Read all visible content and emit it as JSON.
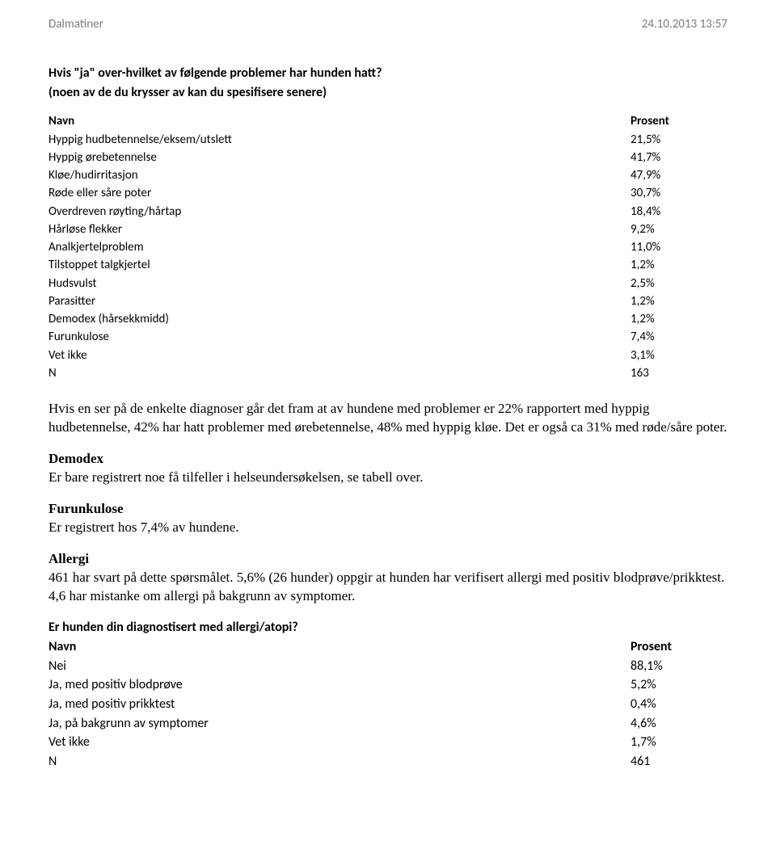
{
  "header": {
    "left": "Dalmatiner",
    "right": "24.10.2013 13:57"
  },
  "section1": {
    "title": "Hvis \"ja\" over-hvilket av følgende problemer har hunden hatt?",
    "sub": "(noen av de du krysser av kan du spesifisere senere)",
    "name_header": "Navn",
    "value_header": "Prosent",
    "rows": [
      {
        "name": "Hyppig hudbetennelse/eksem/utslett",
        "value": "21,5%"
      },
      {
        "name": "Hyppig ørebetennelse",
        "value": "41,7%"
      },
      {
        "name": "Kløe/hudirritasjon",
        "value": "47,9%"
      },
      {
        "name": "Røde eller såre poter",
        "value": "30,7%"
      },
      {
        "name": "Overdreven røyting/hårtap",
        "value": "18,4%"
      },
      {
        "name": "Hårløse flekker",
        "value": "9,2%"
      },
      {
        "name": "Analkjertelproblem",
        "value": "11,0%"
      },
      {
        "name": "Tilstoppet talgkjertel",
        "value": "1,2%"
      },
      {
        "name": "Hudsvulst",
        "value": "2,5%"
      },
      {
        "name": "Parasitter",
        "value": "1,2%"
      },
      {
        "name": "Demodex (hårsekkmidd)",
        "value": "1,2%"
      },
      {
        "name": "Furunkulose",
        "value": "7,4%"
      },
      {
        "name": "Vet ikke",
        "value": "3,1%"
      },
      {
        "name": "N",
        "value": "163"
      }
    ]
  },
  "paragraphs": {
    "p1": "Hvis en ser på de enkelte diagnoser går det fram at av hundene med problemer er 22% rapportert med hyppig hudbetennelse, 42% har hatt problemer med ørebetennelse, 48% med hyppig kløe. Det er også ca 31% med røde/såre poter.",
    "demodex_title": "Demodex",
    "demodex_body": "Er bare registrert noe få tilfeller i helseundersøkelsen, se tabell over.",
    "furunkulose_title": "Furunkulose",
    "furunkulose_body": "Er registrert hos 7,4% av hundene.",
    "allergi_title": "Allergi",
    "allergi_body": "461 har svart på dette spørsmålet. 5,6% (26 hunder) oppgir at hunden har verifisert allergi med positiv blodprøve/prikktest. 4,6 har mistanke om allergi på bakgrunn av symptomer."
  },
  "section2": {
    "title": "Er hunden din diagnostisert med allergi/atopi?",
    "name_header": "Navn",
    "value_header": "Prosent",
    "rows": [
      {
        "name": "Nei",
        "value": "88,1%"
      },
      {
        "name": "Ja, med positiv blodprøve",
        "value": "5,2%"
      },
      {
        "name": "Ja, med positiv prikktest",
        "value": "0,4%"
      },
      {
        "name": "Ja, på bakgrunn av symptomer",
        "value": "4,6%"
      },
      {
        "name": "Vet ikke",
        "value": "1,7%"
      },
      {
        "name": "N",
        "value": "461"
      }
    ]
  }
}
